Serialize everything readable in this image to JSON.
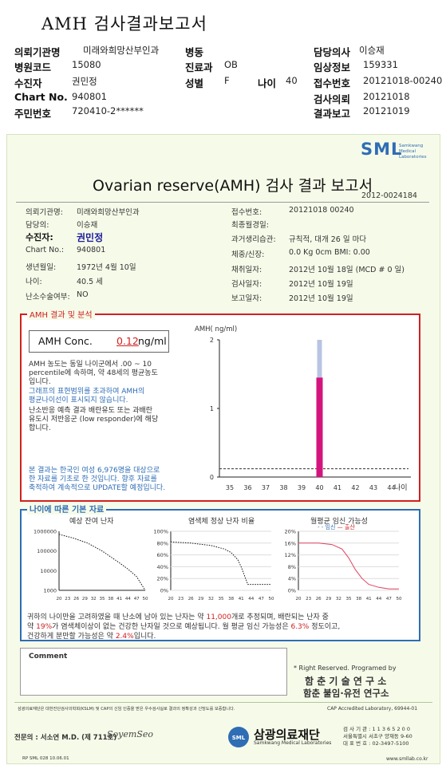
{
  "header": {
    "title": "AMH 검사결과보고서",
    "rows": [
      {
        "l1": "의뢰기관명",
        "v1": "미래와희망산부인과",
        "l2": "병동",
        "v2": "",
        "l4": "담당의사",
        "v4": "이승재"
      },
      {
        "l1": "병원코드",
        "v1": "15080",
        "l2": "진료과",
        "v2": "OB",
        "l4": "임상정보",
        "v4": "159331"
      },
      {
        "l1": "수진자",
        "v1": "권민정",
        "l2": "성별",
        "v2": "F",
        "l3": "나이",
        "v3": "40",
        "l4": "접수번호",
        "v4": "20121018-00240"
      },
      {
        "l1": "Chart No.",
        "v1": "940801",
        "l2": "",
        "v2": "",
        "l4": "검사의뢰",
        "v4": "20121018"
      },
      {
        "l1": "주민번호",
        "v1": "720410-2******",
        "l2": "",
        "v2": "",
        "l4": "결과보고",
        "v4": "20121019"
      }
    ]
  },
  "report": {
    "brand": "SML",
    "brand_sub": [
      "Samkwang",
      "Medical",
      "Laboratories"
    ],
    "title": "Ovarian reserve(AMH) 검사 결과 보고서",
    "number": "2012-0024184",
    "left": [
      {
        "label": "의뢰기관명:",
        "value": "미래와희망산부인과"
      },
      {
        "label": "담당의:",
        "value": "이승재"
      },
      {
        "label": "수진자:",
        "value": "권민정"
      },
      {
        "label": "Chart No.:",
        "value": "940801"
      },
      {
        "label": "생년월일:",
        "value": "1972년 4월 10일"
      },
      {
        "label": "나이:",
        "value": "40.5 세"
      },
      {
        "label": "난소수술여부:",
        "value": "NO"
      }
    ],
    "right": [
      {
        "label": "접수번호:",
        "value": "20121018 00240"
      },
      {
        "label": "최종월경일:",
        "value": ""
      },
      {
        "label": "과거생리습관:",
        "value": "규칙적, 대개 26 일 마다"
      },
      {
        "label": "체중/신장:",
        "value": "0.0 Kg      0cm    BMI:    0.00"
      },
      {
        "label": "채취일자:",
        "value": "2012년 10월 18일 (MCD # 0 일)"
      },
      {
        "label": "검사일자:",
        "value": "2012년 10월 19일"
      },
      {
        "label": "보고일자:",
        "value": "2012년 10월 19일"
      }
    ]
  },
  "amh": {
    "legend": "AMH 결과 및 분석",
    "conc_label": "AMH Conc.",
    "conc_value": "0.12",
    "conc_unit": "ng/ml",
    "p1": [
      "AMH 농도는 동일 나이군에서   .00 ~  10",
      "percentile에 속하며, 약   48세의 평균농도",
      "입니다."
    ],
    "p2": [
      "그래프의 표현범위를 초과하여 AMH의",
      "평균나이선이 표시되지 않습니다."
    ],
    "p3": [
      "난소반응 예측 결과 배란유도 또는 과배란",
      "유도시 저반응군 (low responder)에 해당",
      "합니다."
    ],
    "p4": [
      "본 결과는 한국인 여성 6,976명을 대상으로",
      "한 자료를 기초로 한 것입니다. 향후 자료를",
      "축적하여 계속적으로 UPDATE할 예정입니다."
    ]
  },
  "chart_data": [
    {
      "type": "bar",
      "ylabel": "AMH( ng/ml)",
      "xlabel": "나이",
      "x_ticks": [
        35,
        36,
        37,
        38,
        39,
        40,
        41,
        42,
        43,
        44
      ],
      "y_ticks": [
        0,
        1,
        2
      ],
      "ylim": [
        0,
        2
      ],
      "bar_age": 40,
      "bar_value": 1.45,
      "whisker_top": 2.0,
      "dashed_reference": 0.12
    },
    {
      "type": "line",
      "title": "예상 잔여 난자",
      "y_ticks": [
        "1000000",
        "100000",
        "10000",
        "1000"
      ],
      "x_ticks": [
        "20",
        "23",
        "26",
        "29",
        "32",
        "35",
        "38",
        "41",
        "44",
        "47",
        "50"
      ],
      "x": [
        20,
        25,
        30,
        35,
        38,
        41,
        44,
        47,
        50
      ],
      "y": [
        700000,
        450000,
        250000,
        100000,
        50000,
        25000,
        12000,
        5000,
        1000
      ]
    },
    {
      "type": "line",
      "title": "염색체 정상 난자 비율",
      "y_ticks": [
        "100%",
        "80%",
        "60%",
        "40%",
        "20%",
        "0%"
      ],
      "x_ticks": [
        "20",
        "23",
        "26",
        "29",
        "32",
        "35",
        "38",
        "41",
        "44",
        "47",
        "50"
      ],
      "x": [
        20,
        26,
        32,
        36,
        38,
        40,
        41,
        42,
        43,
        45,
        50
      ],
      "y": [
        82,
        80,
        76,
        70,
        64,
        52,
        40,
        25,
        10,
        10,
        10
      ]
    },
    {
      "type": "line",
      "title": "월평균 임신 가능성",
      "series_labels": [
        "임신",
        "출산"
      ],
      "y_ticks": [
        "20%",
        "16%",
        "12%",
        "8%",
        "4%",
        "0%"
      ],
      "x_ticks": [
        "20",
        "23",
        "26",
        "29",
        "32",
        "35",
        "38",
        "41",
        "44",
        "47",
        "50"
      ],
      "x": [
        20,
        26,
        30,
        33,
        35,
        37,
        39,
        41,
        44,
        47,
        50
      ],
      "y": [
        16,
        16,
        15.5,
        14,
        11,
        7,
        4,
        2,
        1,
        0.5,
        0.5
      ]
    }
  ],
  "age": {
    "legend": "나이에 따른 기본 자료",
    "summary": [
      [
        "귀하의 나이만을 고려하였을 때 난소에 남아 있는 난자는 약  ",
        "11,000",
        "개로 추정되며, 배란되는 난자 중"
      ],
      [
        "약  ",
        "19%",
        "가 염색체이상이 없는 건강한 난자일 것으로 예상됩니다. 월 평균 임신 가능성은 ",
        "6.3%",
        " 정도이고,"
      ],
      [
        "건강하게 분만할 가능성은 약 ",
        "2.4%",
        "입니다."
      ]
    ]
  },
  "footer": {
    "comment": "Comment",
    "rights": "* Right Reserved. Programed by",
    "inst1": "함 춘 기 술 연 구 소",
    "inst2": "함춘 불임·유전 연구소",
    "cert": "삼광의료재단은 대한진단검사의학회(KSLM) 및 CAP의 신임 인증을 받은 우수검사실로 결과의 정확성과 신빙도를 보증합니다.",
    "cap": "CAP  Accredited  Laboratory,  69944-01",
    "doctor": "전문의 : 서소연 M.D. (제 711호)",
    "signature": "SoyemSeo",
    "foundation": "삼광의료재단",
    "foundation_en": "Samkwang Medical Laboratories",
    "contact": [
      "검 사 기 관 : 1 1 3 6 5 2 0 0",
      "서울특별시 서초구 양재동 9-60",
      "대 표 번 호 : 02-3497-5100"
    ],
    "form": "RP  SML  028  10.06.01",
    "web": "www.smllab.co.kr"
  }
}
